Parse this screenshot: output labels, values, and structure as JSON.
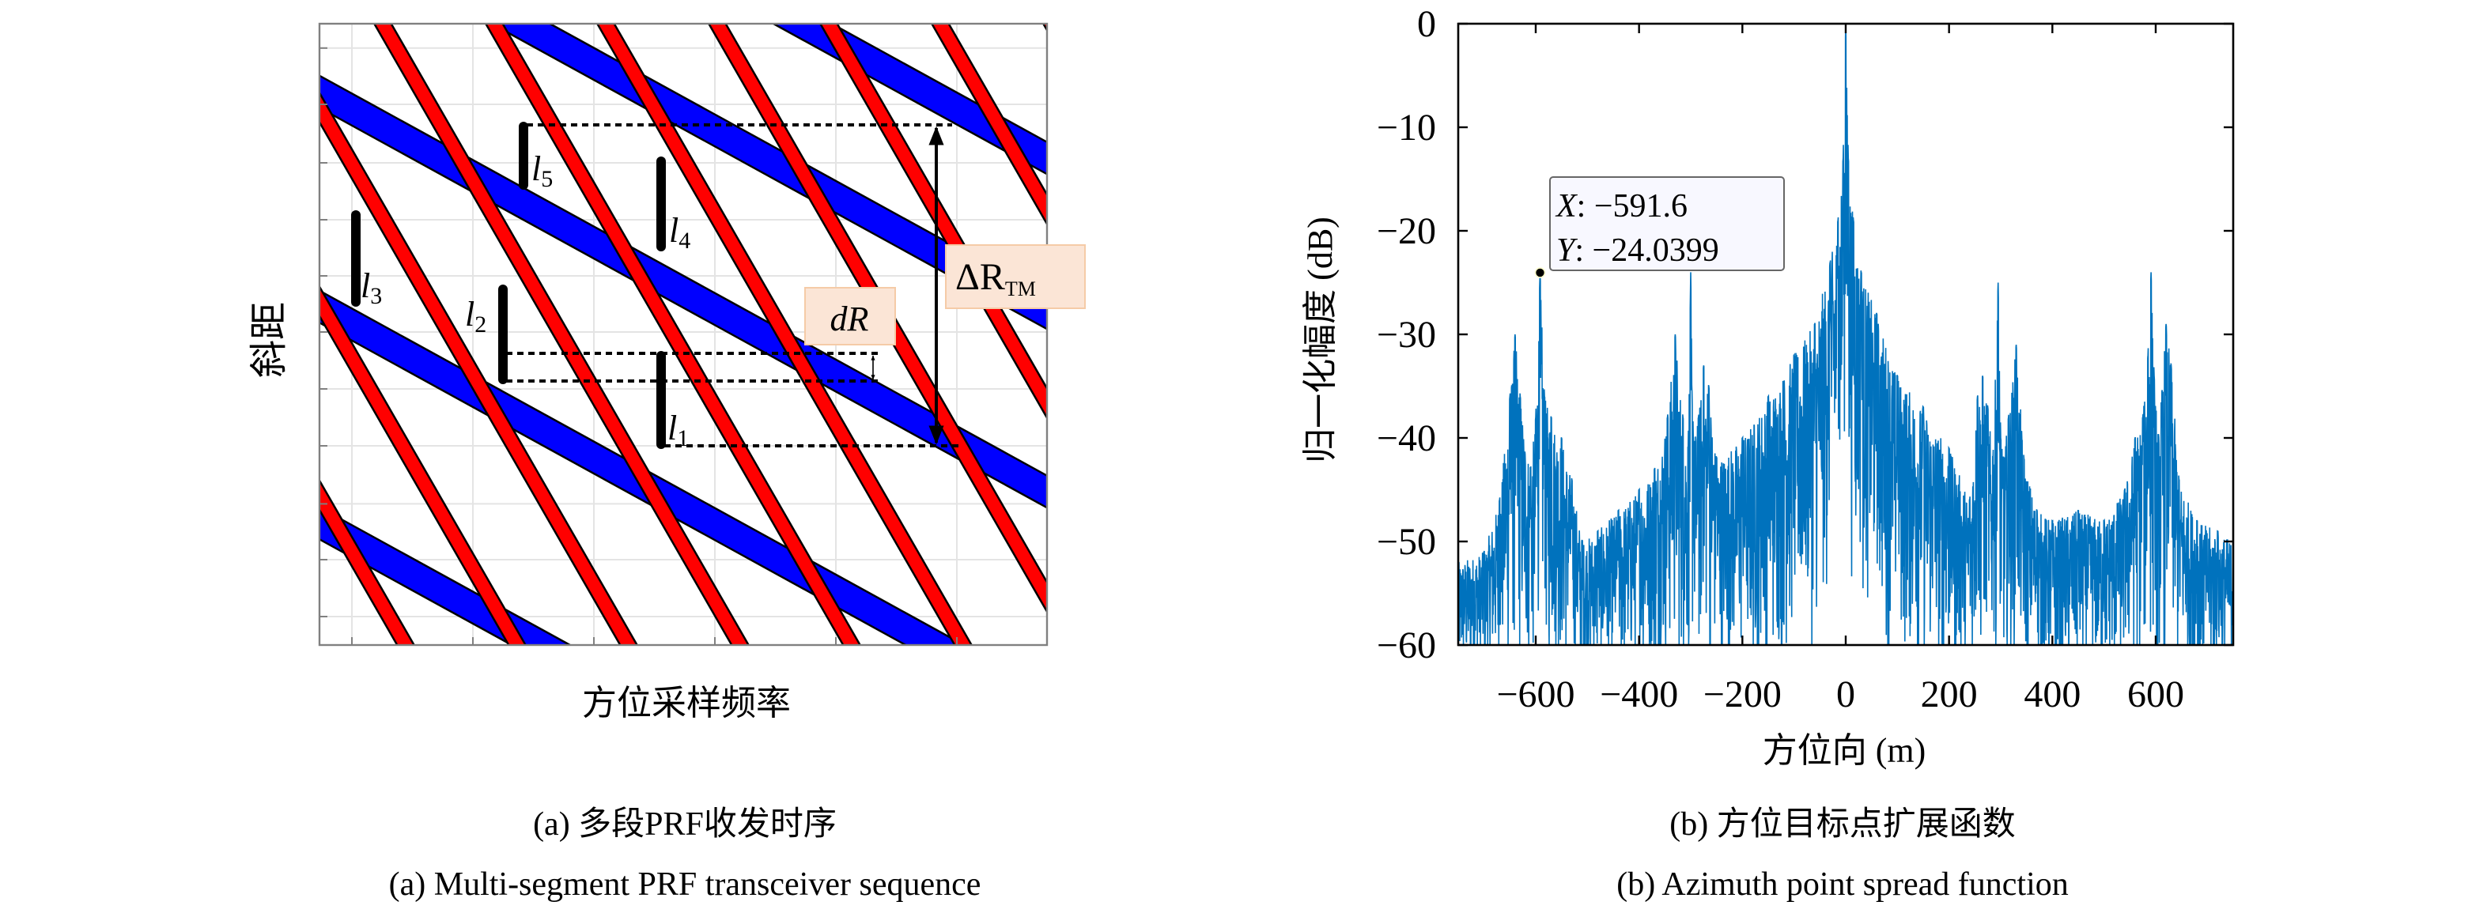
{
  "figure_a": {
    "caption_zh": "(a) 多段PRF收发时序",
    "caption_en": "(a) Multi-segment PRF transceiver sequence",
    "xlabel": "方位采样频率",
    "ylabel": "斜距",
    "segment_labels": [
      {
        "letter": "l",
        "sub": "1"
      },
      {
        "letter": "l",
        "sub": "2"
      },
      {
        "letter": "l",
        "sub": "3"
      },
      {
        "letter": "l",
        "sub": "4"
      },
      {
        "letter": "l",
        "sub": "5"
      }
    ],
    "dR_label": "dR",
    "deltaR_label": "ΔR",
    "deltaR_sub": "TM",
    "colors": {
      "red_band": "#ff0000",
      "blue_band": "#0000ff",
      "label_box": "#fbe5d6"
    }
  },
  "figure_b": {
    "caption_zh": "(b) 方位目标点扩展函数",
    "caption_en": "(b) Azimuth point spread function"
  },
  "chart_data": {
    "type": "line",
    "xlabel": "方位向 (m)",
    "ylabel": "归一化幅度 (dB)",
    "xlim": [
      -750,
      750
    ],
    "ylim": [
      -60,
      0
    ],
    "xticks": [
      -600,
      -400,
      -200,
      0,
      200,
      400,
      600
    ],
    "xtick_labels": [
      "−600",
      "−400",
      "−200",
      "0",
      "200",
      "400",
      "600"
    ],
    "yticks": [
      0,
      -10,
      -20,
      -30,
      -40,
      -50,
      -60
    ],
    "ytick_labels": [
      "0",
      "−10",
      "−20",
      "−30",
      "−40",
      "−50",
      "−60"
    ],
    "grid": false,
    "color": "#0072bd",
    "upper_envelope": {
      "x": [
        -750,
        -700,
        -670,
        -650,
        -640,
        -630,
        -610,
        -600,
        -591.6,
        -583,
        -570,
        -550,
        -530,
        -510,
        -480,
        -440,
        -400,
        -370,
        -345,
        -330,
        -315,
        -305,
        -300,
        -295,
        -285,
        -275,
        -265,
        -250,
        -200,
        -150,
        -100,
        -60,
        -30,
        -15,
        -5,
        0,
        5,
        15,
        30,
        60,
        100,
        150,
        200,
        240,
        255,
        265,
        275,
        285,
        295,
        300,
        305,
        315,
        330,
        345,
        370,
        400,
        450,
        500,
        540,
        560,
        575,
        585,
        591,
        597,
        605,
        620,
        630,
        645,
        680,
        720,
        750
      ],
      "y": [
        -52,
        -51,
        -46,
        -36,
        -30,
        -36,
        -43,
        -38,
        -24.04,
        -36,
        -38,
        -40,
        -44,
        -50,
        -49,
        -47,
        -45,
        -43,
        -38,
        -30,
        -38,
        -41,
        -24,
        -40,
        -38,
        -33,
        -35,
        -42,
        -40,
        -36,
        -32,
        -29,
        -23,
        -19,
        -13,
        0,
        -13,
        -19,
        -24,
        -28,
        -34,
        -37,
        -41,
        -46,
        -36,
        -34,
        -37,
        -42,
        -25,
        -40,
        -42,
        -38,
        -31,
        -42,
        -47,
        -48,
        -47,
        -48,
        -45,
        -40,
        -38,
        -32,
        -24,
        -34,
        -40,
        -29,
        -33,
        -44,
        -48,
        -49,
        -50
      ]
    },
    "lower_envelope": {
      "x": [
        -750,
        -150,
        -60,
        -20,
        0,
        20,
        60,
        150,
        750
      ],
      "y": [
        -60,
        -60,
        -56,
        -52,
        -48,
        -52,
        -56,
        -60,
        -60
      ]
    },
    "datatip": {
      "x": -591.6,
      "y": -24.0399,
      "x_label": "X",
      "x_value": ": −591.6",
      "y_label": "Y",
      "y_value": ": −24.0399"
    }
  }
}
